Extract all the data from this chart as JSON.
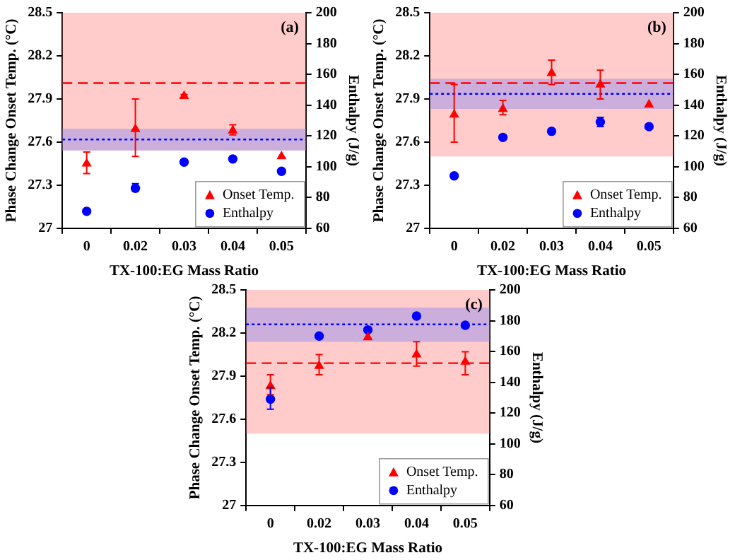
{
  "chart_data": [
    {
      "type": "scatter",
      "categories": [
        "0",
        "0.02",
        "0.03",
        "0.04",
        "0.05"
      ],
      "xlabel": "TX-100:EG Mass Ratio",
      "ylabel": "Phase Change Onset Temp. (°C)",
      "y2label": "Enthalpy (J/g)",
      "ylim": [
        27,
        28.5
      ],
      "yticks": [
        27,
        27.3,
        27.6,
        27.9,
        28.2,
        28.5
      ],
      "y2lim": [
        60,
        200
      ],
      "y2ticks": [
        60,
        80,
        100,
        120,
        140,
        160,
        180,
        200
      ],
      "legend": "bottom right",
      "annotations": [
        "(a)"
      ],
      "series": [
        {
          "name": "Onset Temp.",
          "axis": "y",
          "marker": "triangle",
          "color": "#ff0000",
          "values": [
            27.45,
            27.69,
            27.92,
            27.68,
            27.5
          ],
          "errors": [
            [
              27.38,
              27.53
            ],
            [
              27.5,
              27.9
            ],
            [
              27.91,
              27.93
            ],
            [
              27.65,
              27.72
            ],
            null
          ]
        },
        {
          "name": "Enthalpy",
          "axis": "y2",
          "marker": "circle",
          "color": "#0000ff",
          "values": [
            71,
            86,
            103,
            105,
            97
          ],
          "errors": [
            null,
            [
              84,
              89
            ],
            null,
            null,
            null
          ]
        }
      ],
      "bands": [
        {
          "axis": "y",
          "from": 27.54,
          "to": 28.5,
          "color": "#ff8c8c"
        },
        {
          "axis": "y2",
          "from": 110.6,
          "to": 124.6,
          "color": "#8c8cf0"
        }
      ],
      "ref_lines": [
        {
          "axis": "y",
          "value": 28.01,
          "color": "#ff0000",
          "line_style": "dashed"
        },
        {
          "axis": "y2",
          "value": 117.7,
          "color": "#0000ff",
          "line_style": "dotted"
        }
      ]
    },
    {
      "type": "scatter",
      "categories": [
        "0",
        "0.02",
        "0.03",
        "0.04",
        "0.05"
      ],
      "xlabel": "TX-100:EG Mass Ratio",
      "ylabel": "Phase Change Onset Temp. (°C)",
      "y2label": "Enthalpy (J/g)",
      "ylim": [
        27,
        28.5
      ],
      "yticks": [
        27,
        27.3,
        27.6,
        27.9,
        28.2,
        28.5
      ],
      "y2lim": [
        60,
        200
      ],
      "y2ticks": [
        60,
        80,
        100,
        120,
        140,
        160,
        180,
        200
      ],
      "legend": "bottom right",
      "annotations": [
        "(b)"
      ],
      "series": [
        {
          "name": "Onset Temp.",
          "axis": "y",
          "marker": "triangle",
          "color": "#ff0000",
          "values": [
            27.79,
            27.83,
            28.08,
            28.0,
            27.86
          ],
          "errors": [
            [
              27.6,
              28.0
            ],
            [
              27.79,
              27.89
            ],
            [
              28.0,
              28.17
            ],
            [
              27.9,
              28.1
            ],
            null
          ]
        },
        {
          "name": "Enthalpy",
          "axis": "y2",
          "marker": "circle",
          "color": "#0000ff",
          "values": [
            94,
            119,
            123,
            129,
            126
          ],
          "errors": [
            null,
            null,
            null,
            [
              126,
              132
            ],
            null
          ]
        }
      ],
      "bands": [
        {
          "axis": "y",
          "from": 27.5,
          "to": 28.5,
          "color": "#ff8c8c"
        },
        {
          "axis": "y2",
          "from": 137.5,
          "to": 157.1,
          "color": "#8c8cf0"
        }
      ],
      "ref_lines": [
        {
          "axis": "y",
          "value": 28.01,
          "color": "#ff0000",
          "line_style": "dashed"
        },
        {
          "axis": "y2",
          "value": 147.3,
          "color": "#0000ff",
          "line_style": "dotted"
        }
      ]
    },
    {
      "type": "scatter",
      "categories": [
        "0",
        "0.02",
        "0.03",
        "0.04",
        "0.05"
      ],
      "xlabel": "TX-100:EG Mass Ratio",
      "ylabel": "Phase Change Onset Temp. (°C)",
      "y2label": "Enthalpy (J/g)",
      "ylim": [
        27,
        28.5
      ],
      "yticks": [
        27,
        27.3,
        27.6,
        27.9,
        28.2,
        28.5
      ],
      "y2lim": [
        60,
        200
      ],
      "y2ticks": [
        60,
        80,
        100,
        120,
        140,
        160,
        180,
        200
      ],
      "legend": "bottom right",
      "annotations": [
        "(c)"
      ],
      "series": [
        {
          "name": "Onset Temp.",
          "axis": "y",
          "marker": "triangle",
          "color": "#ff0000",
          "values": [
            27.83,
            27.97,
            28.17,
            28.05,
            28.0
          ],
          "errors": [
            [
              27.77,
              27.91
            ],
            [
              27.91,
              28.05
            ],
            null,
            [
              27.97,
              28.14
            ],
            [
              27.91,
              28.07
            ]
          ]
        },
        {
          "name": "Enthalpy",
          "axis": "y2",
          "marker": "circle",
          "color": "#0000ff",
          "values": [
            129,
            170,
            174,
            183,
            177
          ],
          "errors": [
            [
              122.5,
              136.6
            ],
            null,
            null,
            null,
            null
          ]
        }
      ],
      "bands": [
        {
          "axis": "y",
          "from": 27.5,
          "to": 28.5,
          "color": "#ff8c8c"
        },
        {
          "axis": "y2",
          "from": 166.3,
          "to": 188.5,
          "color": "#8c8cf0"
        }
      ],
      "ref_lines": [
        {
          "axis": "y",
          "value": 27.99,
          "color": "#ff0000",
          "line_style": "dashed"
        },
        {
          "axis": "y2",
          "value": 177.6,
          "color": "#0000ff",
          "line_style": "dotted"
        }
      ]
    }
  ]
}
